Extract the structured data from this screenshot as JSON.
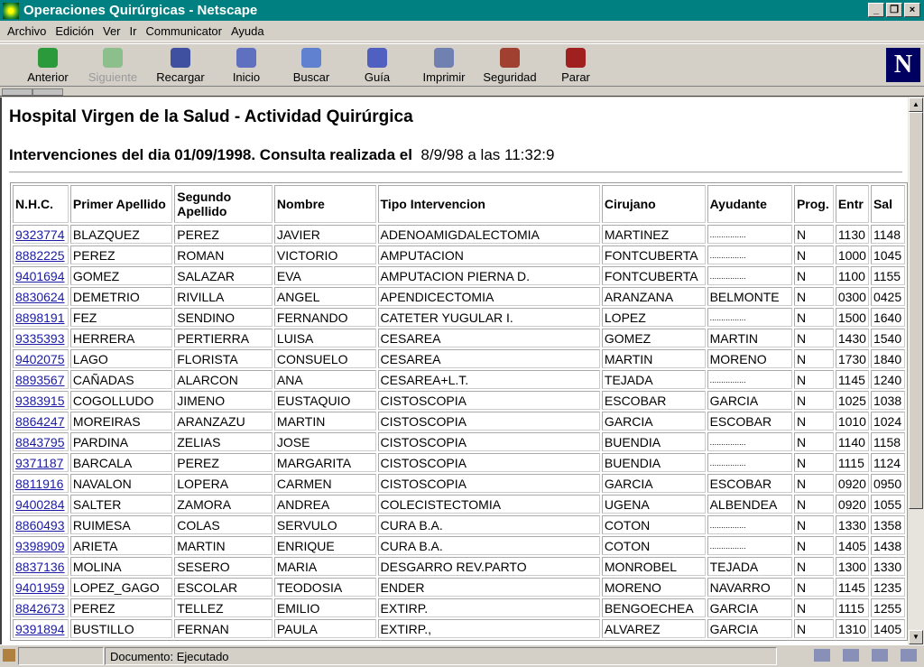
{
  "window": {
    "title": "Operaciones Quirúrgicas - Netscape"
  },
  "menu": [
    "Archivo",
    "Edición",
    "Ver",
    "Ir",
    "Communicator",
    "Ayuda"
  ],
  "toolbar": [
    {
      "label": "Anterior",
      "icon": "back-arrow-icon",
      "enabled": true
    },
    {
      "label": "Siguiente",
      "icon": "forward-arrow-icon",
      "enabled": false
    },
    {
      "label": "Recargar",
      "icon": "reload-icon",
      "enabled": true
    },
    {
      "label": "Inicio",
      "icon": "home-icon",
      "enabled": true
    },
    {
      "label": "Buscar",
      "icon": "search-flashlight-icon",
      "enabled": true
    },
    {
      "label": "Guía",
      "icon": "guide-signpost-icon",
      "enabled": true
    },
    {
      "label": "Imprimir",
      "icon": "printer-icon",
      "enabled": true
    },
    {
      "label": "Seguridad",
      "icon": "padlock-icon",
      "enabled": true
    },
    {
      "label": "Parar",
      "icon": "stop-traffic-light-icon",
      "enabled": true
    }
  ],
  "page": {
    "title": "Hospital Virgen de la Salud - Actividad Quirúrgica",
    "subtitle_bold": "Intervenciones del dia 01/09/1998. Consulta realizada el",
    "subtitle_normal": "8/9/98 a las 11:32:9",
    "columns": [
      "N.H.C.",
      "Primer Apellido",
      "Segundo Apellido",
      "Nombre",
      "Tipo Intervencion",
      "Cirujano",
      "Ayudante",
      "Prog.",
      "Entr",
      "Sal"
    ],
    "rows": [
      [
        "9323774",
        "BLAZQUEZ",
        "PEREZ",
        "JAVIER",
        "ADENOAMIGDALECTOMIA",
        "MARTINEZ",
        "................",
        "N",
        "1130",
        "1148"
      ],
      [
        "8882225",
        "PEREZ",
        "ROMAN",
        "VICTORIO",
        "AMPUTACION",
        "FONTCUBERTA",
        "................",
        "N",
        "1000",
        "1045"
      ],
      [
        "9401694",
        "GOMEZ",
        "SALAZAR",
        "EVA",
        "AMPUTACION PIERNA D.",
        "FONTCUBERTA",
        "................",
        "N",
        "1100",
        "1155"
      ],
      [
        "8830624",
        "DEMETRIO",
        "RIVILLA",
        "ANGEL",
        "APENDICECTOMIA",
        "ARANZANA",
        "BELMONTE",
        "N",
        "0300",
        "0425"
      ],
      [
        "8898191",
        "FEZ",
        "SENDINO",
        "FERNANDO",
        "CATETER YUGULAR I.",
        "LOPEZ",
        "................",
        "N",
        "1500",
        "1640"
      ],
      [
        "9335393",
        "HERRERA",
        "PERTIERRA",
        "LUISA",
        "CESAREA",
        "GOMEZ",
        "MARTIN",
        "N",
        "1430",
        "1540"
      ],
      [
        "9402075",
        "LAGO",
        "FLORISTA",
        "CONSUELO",
        "CESAREA",
        "MARTIN",
        "MORENO",
        "N",
        "1730",
        "1840"
      ],
      [
        "8893567",
        "CAÑADAS",
        "ALARCON",
        "ANA",
        "CESAREA+L.T.",
        "TEJADA",
        "................",
        "N",
        "1145",
        "1240"
      ],
      [
        "9383915",
        "COGOLLUDO",
        "JIMENO",
        "EUSTAQUIO",
        "CISTOSCOPIA",
        "ESCOBAR",
        "GARCIA",
        "N",
        "1025",
        "1038"
      ],
      [
        "8864247",
        "MOREIRAS",
        "ARANZAZU",
        "MARTIN",
        "CISTOSCOPIA",
        "GARCIA",
        "ESCOBAR",
        "N",
        "1010",
        "1024"
      ],
      [
        "8843795",
        "PARDINA",
        "ZELIAS",
        "JOSE",
        "CISTOSCOPIA",
        "BUENDIA",
        "................",
        "N",
        "1140",
        "1158"
      ],
      [
        "9371187",
        "BARCALA",
        "PEREZ",
        "MARGARITA",
        "CISTOSCOPIA",
        "BUENDIA",
        "................",
        "N",
        "1115",
        "1124"
      ],
      [
        "8811916",
        "NAVALON",
        "LOPERA",
        "CARMEN",
        "CISTOSCOPIA",
        "GARCIA",
        "ESCOBAR",
        "N",
        "0920",
        "0950"
      ],
      [
        "9400284",
        "SALTER",
        "ZAMORA",
        "ANDREA",
        "COLECISTECTOMIA",
        "UGENA",
        "ALBENDEA",
        "N",
        "0920",
        "1055"
      ],
      [
        "8860493",
        "RUIMESA",
        "COLAS",
        "SERVULO",
        "CURA B.A.",
        "COTON",
        "................",
        "N",
        "1330",
        "1358"
      ],
      [
        "9398909",
        "ARIETA",
        "MARTIN",
        "ENRIQUE",
        "CURA B.A.",
        "COTON",
        "................",
        "N",
        "1405",
        "1438"
      ],
      [
        "8837136",
        "MOLINA",
        "SESERO",
        "MARIA",
        "DESGARRO REV.PARTO",
        "MONROBEL",
        "TEJADA",
        "N",
        "1300",
        "1330"
      ],
      [
        "9401959",
        "LOPEZ_GAGO",
        "ESCOLAR",
        "TEODOSIA",
        "ENDER",
        "MORENO",
        "NAVARRO",
        "N",
        "1145",
        "1235"
      ],
      [
        "8842673",
        "PEREZ",
        "TELLEZ",
        "EMILIO",
        "EXTIRP.",
        "BENGOECHEA",
        "GARCIA",
        "N",
        "1115",
        "1255"
      ],
      [
        "9391894",
        "BUSTILLO",
        "FERNAN",
        "PAULA",
        "EXTIRP.,",
        "ALVAREZ",
        "GARCIA",
        "N",
        "1310",
        "1405"
      ]
    ]
  },
  "status": {
    "text": "Documento: Ejecutado"
  }
}
